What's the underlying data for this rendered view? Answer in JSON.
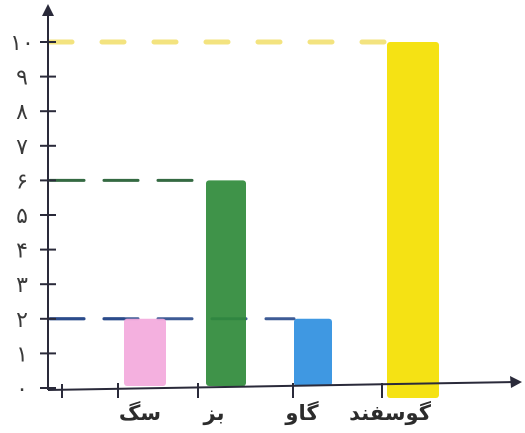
{
  "chart_data": {
    "type": "bar",
    "title": "",
    "xlabel": "",
    "ylabel": "",
    "ylim": [
      0,
      10
    ],
    "y_ticks": [
      0,
      1,
      2,
      3,
      4,
      5,
      6,
      7,
      8,
      9,
      10
    ],
    "y_tick_labels": [
      "٠",
      "١",
      "٢",
      "٣",
      "۴",
      "۵",
      "۶",
      "٧",
      "٨",
      "٩",
      "١٠"
    ],
    "categories": [
      "سگ",
      "بز",
      "گاو",
      "گوسفند"
    ],
    "values": [
      2,
      6,
      2,
      10
    ],
    "colors": [
      "#f3a9dc",
      "#2f8a3a",
      "#2f8fe0",
      "#f4e000"
    ],
    "guide_line_colors": [
      "#2a4a8a",
      "#1f5a2e",
      "#2a4a8a",
      "#efd84a"
    ],
    "grid": false,
    "legend": "none"
  }
}
